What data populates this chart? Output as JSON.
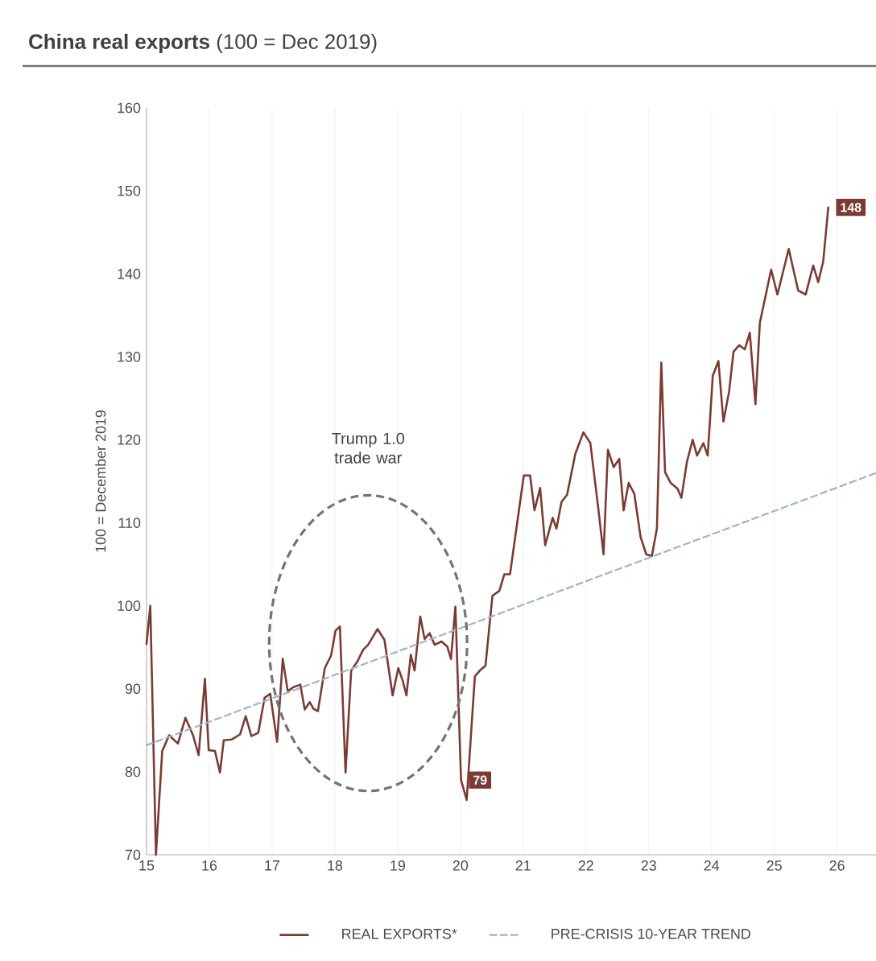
{
  "chart_data": {
    "type": "line",
    "title": "**China real exports** (100 = Dec 2019)",
    "ylabel": "100 = December 2019",
    "xlim": [
      15,
      26.8
    ],
    "xticks": [
      15,
      16,
      17,
      18,
      19,
      20,
      21,
      22,
      23,
      24,
      25,
      26
    ],
    "ylim": [
      70,
      160
    ],
    "yticks": [
      70,
      80,
      90,
      100,
      110,
      120,
      130,
      140,
      150,
      160
    ],
    "grid": "x",
    "legend": "bottom",
    "marker": "none",
    "annotations": [
      "Trump 1.0 trade war"
    ],
    "series": [
      {
        "name": "REAL EXPORTS*",
        "color": "#7b3b33",
        "line_style": "solid",
        "x": [
          15.0,
          15.06,
          15.15,
          15.25,
          15.36,
          15.5,
          15.62,
          15.74,
          15.83,
          15.93,
          15.99,
          16.09,
          16.17,
          16.23,
          16.36,
          16.49,
          16.58,
          16.67,
          16.78,
          16.88,
          16.97,
          17.08,
          17.17,
          17.25,
          17.34,
          17.45,
          17.52,
          17.6,
          17.66,
          17.73,
          17.84,
          17.94,
          18.01,
          18.08,
          18.17,
          18.26,
          18.36,
          18.45,
          18.53,
          18.68,
          18.79,
          18.92,
          19.01,
          19.08,
          19.14,
          19.21,
          19.27,
          19.36,
          19.43,
          19.51,
          19.59,
          19.7,
          19.79,
          19.85,
          19.92,
          20.01,
          20.1,
          20.23,
          20.31,
          20.4,
          20.51,
          20.62,
          20.7,
          20.79,
          21.01,
          21.11,
          21.18,
          21.27,
          21.35,
          21.47,
          21.53,
          21.61,
          21.7,
          21.83,
          21.96,
          22.07,
          22.2,
          22.28,
          22.35,
          22.44,
          22.53,
          22.6,
          22.68,
          22.77,
          22.87,
          22.96,
          23.05,
          23.13,
          23.2,
          23.26,
          23.35,
          23.46,
          23.52,
          23.61,
          23.7,
          23.77,
          23.87,
          23.94,
          24.02,
          24.11,
          24.19,
          24.28,
          24.35,
          24.44,
          24.53,
          24.61,
          24.7,
          24.77,
          24.95,
          25.05,
          25.23,
          25.38,
          25.5,
          25.62,
          25.7,
          25.78,
          25.86
        ],
        "values": [
          95.4,
          100.0,
          70,
          82.5,
          84.4,
          83.4,
          86.5,
          84.4,
          82.0,
          91.2,
          82.6,
          82.5,
          79.9,
          83.8,
          83.9,
          84.5,
          86.7,
          84.3,
          84.7,
          88.9,
          89.4,
          83.6,
          93.6,
          89.7,
          90.2,
          90.5,
          87.5,
          88.4,
          87.6,
          87.3,
          92.5,
          94.0,
          97.0,
          97.5,
          79.9,
          92.2,
          93.3,
          94.7,
          95.3,
          97.2,
          95.9,
          89.2,
          92.5,
          91.0,
          89.2,
          94.1,
          92.2,
          98.7,
          96.0,
          96.7,
          95.3,
          95.7,
          95.1,
          93.6,
          99.9,
          79,
          76.6,
          91.5,
          92.2,
          92.8,
          101.2,
          101.8,
          103.8,
          103.8,
          115.7,
          115.7,
          111.5,
          114.2,
          107.3,
          110.6,
          109.3,
          112.5,
          113.4,
          118.3,
          120.9,
          119.6,
          111.5,
          106.2,
          118.8,
          116.7,
          117.7,
          111.5,
          114.8,
          113.5,
          108.3,
          106.2,
          106.0,
          109.3,
          129.3,
          116.1,
          114.8,
          114.1,
          113.0,
          117.4,
          120.0,
          118.1,
          119.6,
          118.1,
          127.7,
          129.5,
          122.2,
          125.8,
          130.6,
          131.4,
          130.9,
          132.9,
          124.3,
          134.1,
          140.5,
          137.5,
          143.0,
          138.0,
          137.5,
          141.0,
          139.0,
          141.5,
          148
        ],
        "value_labels": [
          null,
          null,
          null,
          null,
          null,
          null,
          null,
          null,
          null,
          null,
          null,
          null,
          null,
          null,
          null,
          null,
          null,
          null,
          null,
          null,
          null,
          null,
          null,
          null,
          null,
          null,
          null,
          null,
          null,
          null,
          null,
          null,
          null,
          null,
          null,
          null,
          null,
          null,
          null,
          null,
          null,
          null,
          null,
          null,
          null,
          null,
          null,
          null,
          null,
          null,
          null,
          null,
          null,
          null,
          null,
          "79",
          null,
          null,
          null,
          null,
          null,
          null,
          null,
          null,
          null,
          null,
          null,
          null,
          null,
          null,
          null,
          null,
          null,
          null,
          null,
          null,
          null,
          null,
          null,
          null,
          null,
          null,
          null,
          null,
          null,
          null,
          null,
          null,
          null,
          null,
          null,
          null,
          null,
          null,
          null,
          null,
          null,
          null,
          null,
          null,
          null,
          null,
          null,
          null,
          null,
          null,
          null,
          null,
          null,
          null,
          null,
          null,
          null,
          null,
          null,
          null,
          "148"
        ]
      },
      {
        "name": "PRE-CRISIS 10-YEAR TREND",
        "color": "#9fb3cc",
        "line_style": "dashed",
        "x": [
          15,
          26.8
        ],
        "values": [
          83.2,
          116.5
        ]
      }
    ]
  }
}
